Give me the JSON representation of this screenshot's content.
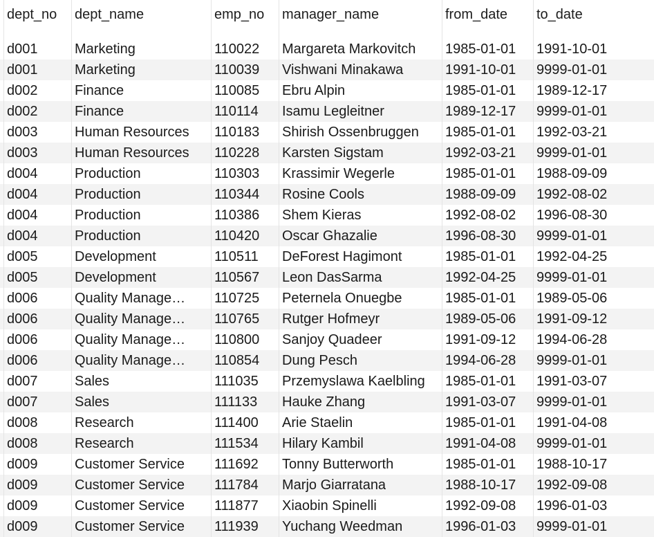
{
  "table": {
    "columns": [
      "dept_no",
      "dept_name",
      "emp_no",
      "manager_name",
      "from_date",
      "to_date"
    ],
    "rows": [
      [
        "d001",
        "Marketing",
        "110022",
        "Margareta Markovitch",
        "1985-01-01",
        "1991-10-01"
      ],
      [
        "d001",
        "Marketing",
        "110039",
        "Vishwani Minakawa",
        "1991-10-01",
        "9999-01-01"
      ],
      [
        "d002",
        "Finance",
        "110085",
        "Ebru Alpin",
        "1985-01-01",
        "1989-12-17"
      ],
      [
        "d002",
        "Finance",
        "110114",
        "Isamu Legleitner",
        "1989-12-17",
        "9999-01-01"
      ],
      [
        "d003",
        "Human Resources",
        "110183",
        "Shirish Ossenbruggen",
        "1985-01-01",
        "1992-03-21"
      ],
      [
        "d003",
        "Human Resources",
        "110228",
        "Karsten Sigstam",
        "1992-03-21",
        "9999-01-01"
      ],
      [
        "d004",
        "Production",
        "110303",
        "Krassimir Wegerle",
        "1985-01-01",
        "1988-09-09"
      ],
      [
        "d004",
        "Production",
        "110344",
        "Rosine Cools",
        "1988-09-09",
        "1992-08-02"
      ],
      [
        "d004",
        "Production",
        "110386",
        "Shem Kieras",
        "1992-08-02",
        "1996-08-30"
      ],
      [
        "d004",
        "Production",
        "110420",
        "Oscar Ghazalie",
        "1996-08-30",
        "9999-01-01"
      ],
      [
        "d005",
        "Development",
        "110511",
        "DeForest Hagimont",
        "1985-01-01",
        "1992-04-25"
      ],
      [
        "d005",
        "Development",
        "110567",
        "Leon DasSarma",
        "1992-04-25",
        "9999-01-01"
      ],
      [
        "d006",
        "Quality Manage…",
        "110725",
        "Peternela Onuegbe",
        "1985-01-01",
        "1989-05-06"
      ],
      [
        "d006",
        "Quality Manage…",
        "110765",
        "Rutger Hofmeyr",
        "1989-05-06",
        "1991-09-12"
      ],
      [
        "d006",
        "Quality Manage…",
        "110800",
        "Sanjoy Quadeer",
        "1991-09-12",
        "1994-06-28"
      ],
      [
        "d006",
        "Quality Manage…",
        "110854",
        "Dung Pesch",
        "1994-06-28",
        "9999-01-01"
      ],
      [
        "d007",
        "Sales",
        "111035",
        "Przemyslawa Kaelbling",
        "1985-01-01",
        "1991-03-07"
      ],
      [
        "d007",
        "Sales",
        "111133",
        "Hauke Zhang",
        "1991-03-07",
        "9999-01-01"
      ],
      [
        "d008",
        "Research",
        "111400",
        "Arie Staelin",
        "1985-01-01",
        "1991-04-08"
      ],
      [
        "d008",
        "Research",
        "111534",
        "Hilary Kambil",
        "1991-04-08",
        "9999-01-01"
      ],
      [
        "d009",
        "Customer Service",
        "111692",
        "Tonny Butterworth",
        "1985-01-01",
        "1988-10-17"
      ],
      [
        "d009",
        "Customer Service",
        "111784",
        "Marjo Giarratana",
        "1988-10-17",
        "1992-09-08"
      ],
      [
        "d009",
        "Customer Service",
        "111877",
        "Xiaobin Spinelli",
        "1992-09-08",
        "1996-01-03"
      ],
      [
        "d009",
        "Customer Service",
        "111939",
        "Yuchang Weedman",
        "1996-01-03",
        "9999-01-01"
      ]
    ]
  }
}
